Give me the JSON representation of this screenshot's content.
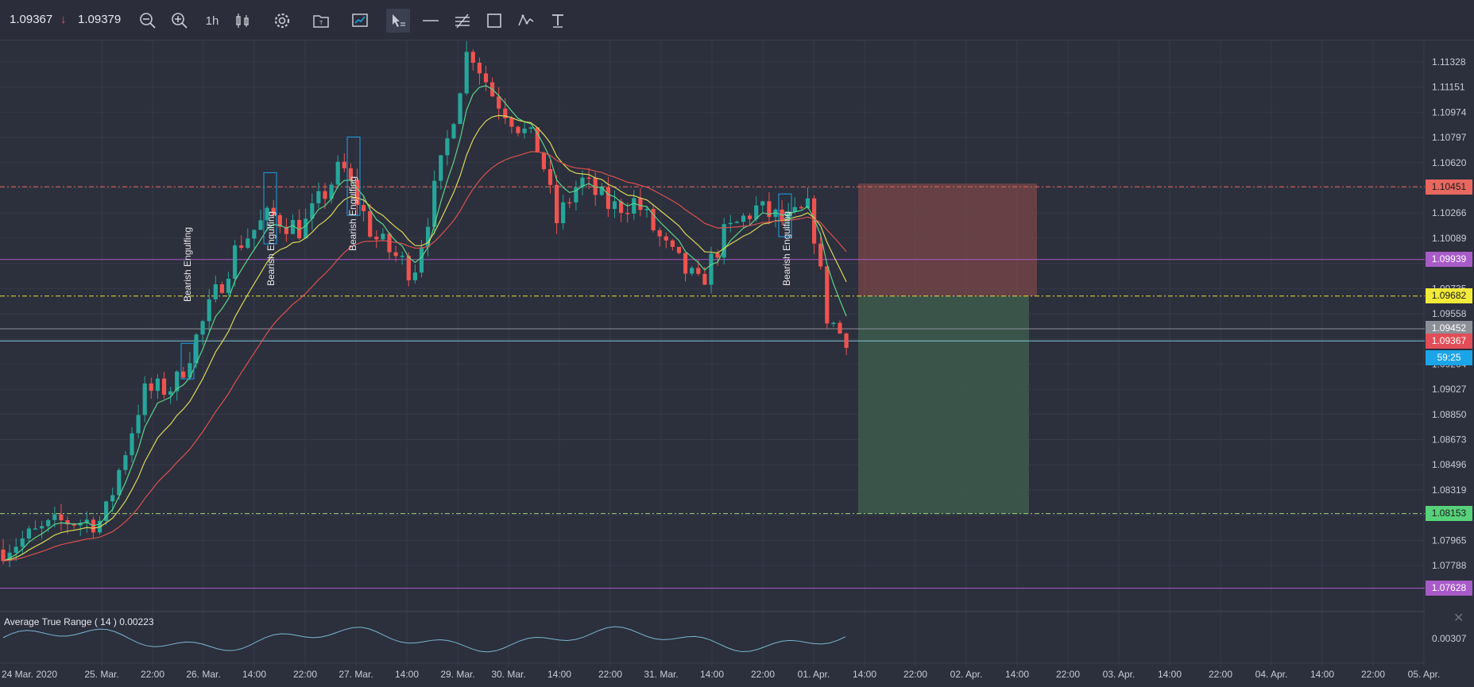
{
  "toolbar": {
    "last_price": "1.09367",
    "prev_price": "1.09379",
    "arrow": "↓",
    "timeframe": "1h",
    "tools": [
      {
        "name": "zoom-out-icon"
      },
      {
        "name": "zoom-in-icon"
      },
      {
        "name": "timeframe"
      },
      {
        "name": "candles-icon"
      },
      {
        "name": "settings-gear-icon"
      },
      {
        "name": "template-icon"
      },
      {
        "name": "indicator-chart-icon"
      },
      {
        "name": "cursor-select-icon",
        "active": true
      },
      {
        "name": "horizontal-line-icon"
      },
      {
        "name": "channel-lines-icon"
      },
      {
        "name": "rectangle-icon"
      },
      {
        "name": "wave-icon"
      },
      {
        "name": "text-tool-icon"
      }
    ]
  },
  "chart_data": {
    "type": "candlestick",
    "symbol_price_range": [
      1.0745,
      1.1145
    ],
    "y_ticks": [
      "1.11328",
      "1.11151",
      "1.10974",
      "1.10797",
      "1.10620",
      "1.10443",
      "1.10266",
      "1.10089",
      "1.09912",
      "1.09735",
      "1.09558",
      "1.09381",
      "1.09204",
      "1.09027",
      "1.08850",
      "1.08673",
      "1.08496",
      "1.08319",
      "1.08142",
      "1.07965",
      "1.07788"
    ],
    "x_ticks": [
      "24 Mar. 2020",
      "25. Mar.",
      "22:00",
      "26. Mar.",
      "14:00",
      "22:00",
      "27. Mar.",
      "14:00",
      "29. Mar.",
      "30. Mar.",
      "14:00",
      "22:00",
      "31. Mar.",
      "14:00",
      "22:00",
      "01. Apr.",
      "14:00",
      "22:00",
      "02. Apr.",
      "14:00",
      "22:00",
      "03. Apr.",
      "14:00",
      "22:00",
      "04. Apr.",
      "14:00",
      "22:00",
      "05. Apr."
    ],
    "price_tags": [
      {
        "label": "1.10451",
        "bg": "#e8685f",
        "fg": "#1b1b1b",
        "price": 1.10451
      },
      {
        "label": "1.09939",
        "bg": "#a85bc8",
        "fg": "#ffffff",
        "price": 1.09939
      },
      {
        "label": "1.09682",
        "bg": "#f2ea3a",
        "fg": "#1b1b1b",
        "price": 1.09682
      },
      {
        "label": "1.09452",
        "bg": "#8c8f98",
        "fg": "#ffffff",
        "price": 1.09452
      },
      {
        "label": "1.09367",
        "bg": "#e24d57",
        "fg": "#ffffff",
        "price": 1.09367
      },
      {
        "label": "59:25",
        "bg": "#1ba4e8",
        "fg": "#ffffff",
        "price": 1.0925
      },
      {
        "label": "1.08153",
        "bg": "#57d17a",
        "fg": "#1b1b1b",
        "price": 1.08153
      },
      {
        "label": "1.07628",
        "bg": "#a85bc8",
        "fg": "#ffffff",
        "price": 1.07628
      }
    ],
    "horizontal_lines": [
      {
        "price": 1.10451,
        "color": "#e8685f",
        "style": "dashdot"
      },
      {
        "price": 1.09939,
        "color": "#a85bc8",
        "style": "solid"
      },
      {
        "price": 1.09682,
        "color": "#e6e03a",
        "style": "dashdot"
      },
      {
        "price": 1.09452,
        "color": "#8c8f98",
        "style": "solid"
      },
      {
        "price": 1.09367,
        "color": "#7fc7d9",
        "style": "solid"
      },
      {
        "price": 1.08153,
        "color": "#9fd47a",
        "style": "dashdot"
      },
      {
        "price": 1.07628,
        "color": "#a85bc8",
        "style": "solid"
      }
    ],
    "position_tool": {
      "entry": 1.09682,
      "stop": 1.10451,
      "target": 1.08153
    },
    "pattern_labels": [
      "Bearish Engulfing",
      "Bearish Engulfing",
      "Bearish Engulfing",
      "Bearish Engulfing"
    ],
    "colors": {
      "up": "#26a69a",
      "down": "#ef5350",
      "ema_fast": "#5ad48a",
      "ema_mid": "#d9d85a",
      "ema_slow": "#d9524f",
      "atr": "#7ab6d4"
    },
    "atr": {
      "label": "Average True Range ( 14 ) 0.00223",
      "tick": "0.00307"
    }
  }
}
